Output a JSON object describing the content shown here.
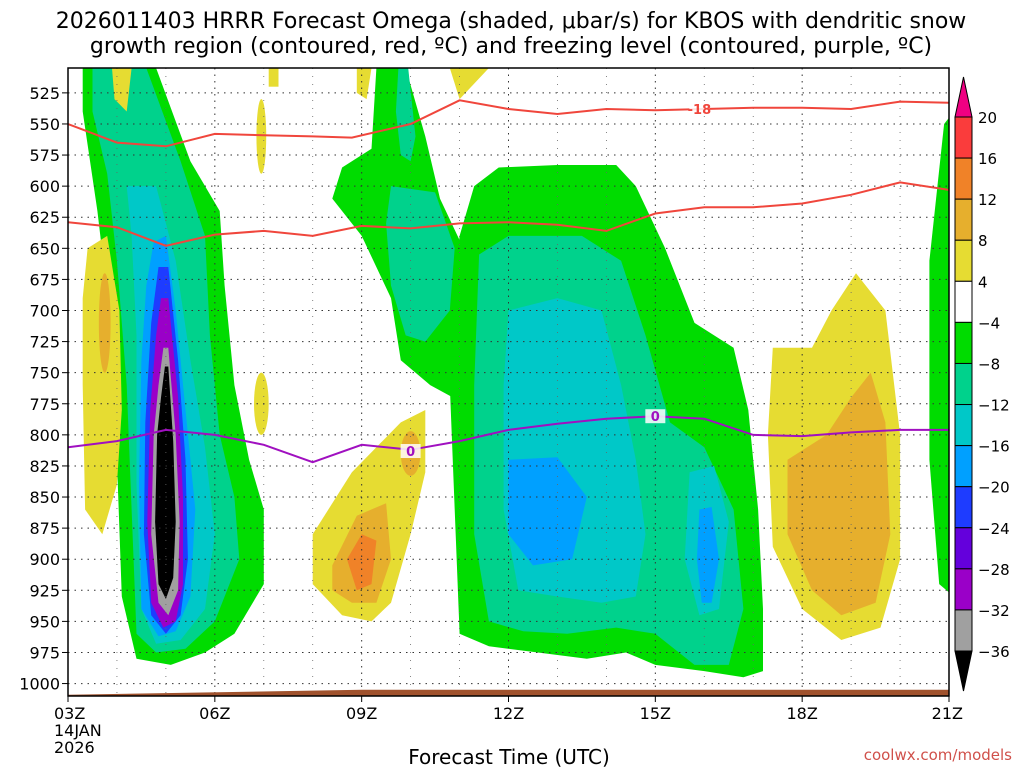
{
  "header": {
    "title_line1": "2026011403 HRRR Forecast Omega (shaded, μbar/s) for KBOS with dendritic snow",
    "title_line2": "growth region (contoured, red, ºC) and freezing level (contoured, purple, ºC)"
  },
  "credit": "coolwx.com/models",
  "chart_data": {
    "type": "heatmap",
    "title": "2026011403 HRRR Forecast Omega (shaded, μbar/s) for KBOS with dendritic snow growth region (contoured, red, ºC) and freezing level (contoured, purple, ºC)",
    "xlabel": "Forecast Time (UTC)",
    "ylabel": "",
    "x_range_hours": [
      3,
      21
    ],
    "y_range_hpa": [
      1010,
      505
    ],
    "x_ticks": [
      {
        "hour": 3,
        "label": "03Z",
        "sub1": "14JAN",
        "sub2": "2026"
      },
      {
        "hour": 6,
        "label": "06Z"
      },
      {
        "hour": 9,
        "label": "09Z"
      },
      {
        "hour": 12,
        "label": "12Z"
      },
      {
        "hour": 15,
        "label": "15Z"
      },
      {
        "hour": 18,
        "label": "18Z"
      },
      {
        "hour": 21,
        "label": "21Z"
      }
    ],
    "y_ticks": [
      525,
      550,
      575,
      600,
      625,
      650,
      675,
      700,
      725,
      750,
      775,
      800,
      825,
      850,
      875,
      900,
      925,
      950,
      975,
      1000
    ],
    "colorbar": {
      "levels": [
        -36,
        -32,
        -28,
        -24,
        -20,
        -16,
        -12,
        -8,
        -4,
        4,
        8,
        12,
        16,
        20
      ],
      "colors": [
        "#000000",
        "#a0a0a0",
        "#9a00c8",
        "#6400dc",
        "#1e3cff",
        "#00a0ff",
        "#00c8c8",
        "#00d28c",
        "#00dc00",
        "#ffffff",
        "#e6dc32",
        "#e6af2d",
        "#f08228",
        "#fa3c3c",
        "#f00082"
      ]
    },
    "omega_regions": [
      {
        "name": "west-ascent",
        "center_hour": 4.95,
        "min_hpa": 983,
        "max_hpa": 505,
        "min_value": -36
      },
      {
        "name": "mid-ascent-upper",
        "center_hour": 9.7,
        "min_hpa": 780,
        "max_hpa": 505,
        "min_value": -12
      },
      {
        "name": "central-ascent",
        "center_hour": 13.6,
        "min_hpa": 990,
        "max_hpa": 585,
        "min_value": -20
      },
      {
        "name": "subsidence-west",
        "center_hour": 3.5,
        "min_hpa": 880,
        "max_hpa": 640,
        "max_value": 8
      },
      {
        "name": "subsidence-mid",
        "center_hour": 9.2,
        "min_hpa": 960,
        "max_hpa": 780,
        "max_value": 16
      },
      {
        "name": "subsidence-east",
        "center_hour": 19.0,
        "min_hpa": 965,
        "max_hpa": 670,
        "max_value": 12
      }
    ],
    "contours": [
      {
        "name": "-18C",
        "color": "#f0463c",
        "label": "-18",
        "points": [
          [
            3,
            550
          ],
          [
            4,
            565
          ],
          [
            5,
            568
          ],
          [
            6,
            558
          ],
          [
            7,
            559
          ],
          [
            8,
            560
          ],
          [
            8.8,
            561
          ],
          [
            10,
            550
          ],
          [
            11,
            531
          ],
          [
            12,
            538
          ],
          [
            13,
            542
          ],
          [
            14,
            538
          ],
          [
            15,
            539
          ],
          [
            16,
            538
          ],
          [
            17,
            537
          ],
          [
            18,
            537
          ],
          [
            19,
            538
          ],
          [
            20,
            532
          ],
          [
            21,
            533
          ]
        ],
        "label_at": [
          15.9,
          538
        ]
      },
      {
        "name": "-12C",
        "color": "#f0463c",
        "points": [
          [
            3,
            629
          ],
          [
            4,
            633
          ],
          [
            5,
            648
          ],
          [
            6,
            639
          ],
          [
            7,
            636
          ],
          [
            8,
            640
          ],
          [
            9,
            632
          ],
          [
            10,
            634
          ],
          [
            11,
            630
          ],
          [
            12,
            629
          ],
          [
            13,
            631
          ],
          [
            14,
            636
          ],
          [
            15,
            622
          ],
          [
            16,
            617
          ],
          [
            17,
            617
          ],
          [
            18,
            614
          ],
          [
            19,
            607
          ],
          [
            20,
            597
          ],
          [
            21,
            603
          ]
        ]
      },
      {
        "name": "0C",
        "color": "#a010c0",
        "label": "0",
        "points": [
          [
            3,
            810
          ],
          [
            4,
            805
          ],
          [
            5,
            796
          ],
          [
            6,
            800
          ],
          [
            7,
            808
          ],
          [
            8,
            822
          ],
          [
            9,
            808
          ],
          [
            10,
            812
          ],
          [
            11,
            805
          ],
          [
            12,
            796
          ],
          [
            13,
            791
          ],
          [
            14,
            787
          ],
          [
            15,
            785
          ],
          [
            16,
            787
          ],
          [
            17,
            800
          ],
          [
            18,
            801
          ],
          [
            19,
            798
          ],
          [
            20,
            796
          ],
          [
            21,
            796
          ]
        ],
        "label_at": [
          15.0,
          785
        ],
        "label_at2": [
          10.0,
          813
        ]
      }
    ],
    "terrain": {
      "color": "#a0522d",
      "surface_hpa_start": 1009,
      "surface_hpa_end": 1005
    }
  }
}
